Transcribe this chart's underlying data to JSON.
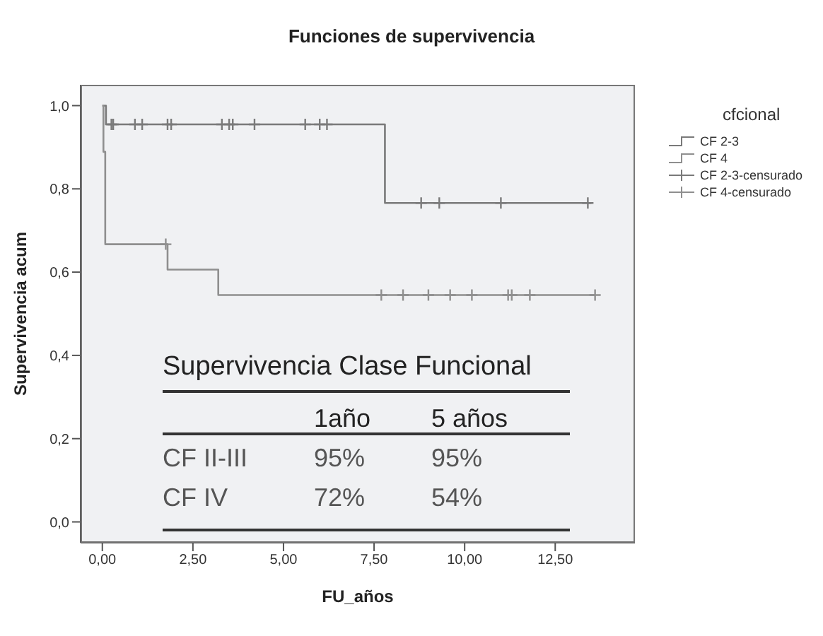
{
  "chart_data": {
    "type": "step",
    "title": "Funciones de supervivencia",
    "xlabel": "FU_años",
    "ylabel": "Supervivencia acum",
    "legend_title": "cfcional",
    "legend": "right",
    "xlim": [
      -0.6,
      14.7
    ],
    "xticks": [
      {
        "value": 0,
        "label": "0,00"
      },
      {
        "value": 2.5,
        "label": "2,50"
      },
      {
        "value": 5,
        "label": "5,00"
      },
      {
        "value": 7.5,
        "label": "7,50"
      },
      {
        "value": 10,
        "label": "10,00"
      },
      {
        "value": 12.5,
        "label": "12,50"
      }
    ],
    "ylim": [
      -0.05,
      1.05
    ],
    "yticks": [
      {
        "value": 0,
        "label": "0,0"
      },
      {
        "value": 0.2,
        "label": "0,2"
      },
      {
        "value": 0.4,
        "label": "0,4"
      },
      {
        "value": 0.6,
        "label": "0,6"
      },
      {
        "value": 0.8,
        "label": "0,8"
      },
      {
        "value": 1,
        "label": "1,0"
      }
    ],
    "grid": false,
    "series": [
      {
        "name": "CF 2-3",
        "color": "#7a7a7a",
        "x": [
          0,
          0.1,
          7.8,
          13.5
        ],
        "values": [
          1.0,
          0.955,
          0.766,
          0.766
        ]
      },
      {
        "name": "CF 4",
        "color": "#8f8f8f",
        "x": [
          0,
          0.03,
          0.08,
          1.8,
          3.2,
          13.6
        ],
        "values": [
          1.0,
          0.889,
          0.667,
          0.606,
          0.545,
          0.545
        ]
      },
      {
        "name": "CF 2-3-censurado",
        "type": "scatter",
        "marker": "cross",
        "color": "#7a7a7a",
        "x": [
          0.25,
          0.3,
          0.9,
          1.1,
          1.8,
          1.9,
          3.3,
          3.5,
          3.6,
          4.2,
          5.6,
          6.0,
          6.2,
          8.8,
          9.3,
          11.0,
          13.4
        ],
        "values": [
          0.955,
          0.955,
          0.955,
          0.955,
          0.955,
          0.955,
          0.955,
          0.955,
          0.955,
          0.955,
          0.955,
          0.955,
          0.955,
          0.766,
          0.766,
          0.766,
          0.766
        ]
      },
      {
        "name": "CF 4-censurado",
        "type": "scatter",
        "marker": "cross",
        "color": "#8f8f8f",
        "x": [
          1.75,
          7.7,
          8.3,
          9.0,
          9.6,
          10.2,
          11.2,
          11.3,
          11.8,
          13.6
        ],
        "values": [
          0.667,
          0.545,
          0.545,
          0.545,
          0.545,
          0.545,
          0.545,
          0.545,
          0.545,
          0.545
        ]
      }
    ],
    "annotations": [
      "Supervivencia Clase Funcional",
      "1año",
      "5 años",
      "CF II-III",
      "95%",
      "95%",
      "CF IV",
      "72%",
      "54%"
    ]
  }
}
